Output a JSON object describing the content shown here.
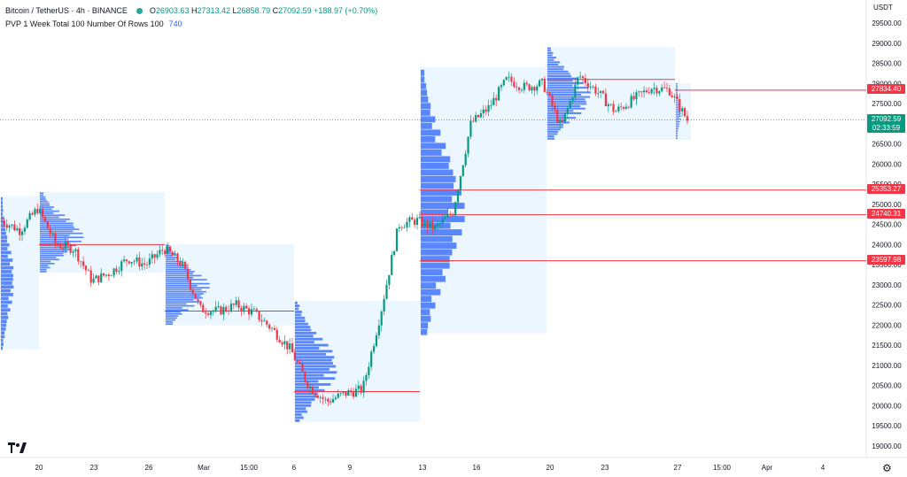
{
  "header": {
    "symbol": "Bitcoin / TetherUS · 4h · BINANCE",
    "ohlc": [
      {
        "k": "O",
        "v": "26903.63"
      },
      {
        "k": "H",
        "v": "27313.42"
      },
      {
        "k": "L",
        "v": "26858.79"
      },
      {
        "k": "C",
        "v": "27092.59"
      },
      {
        "k": "",
        "v": "+188.97 (+0.70%)"
      }
    ]
  },
  "indicator": {
    "label": "PVP 1 Week Total 100 Number Of Rows 100",
    "value": "740"
  },
  "currency": "USDT",
  "price_tags": [
    {
      "label": "27834.40",
      "color": "#f23645"
    },
    {
      "label": "27092.59",
      "color": "#089981"
    },
    {
      "label": "02:33:59",
      "color": "#089981"
    },
    {
      "label": "25353.27",
      "color": "#f23645"
    },
    {
      "label": "24740.31",
      "color": "#f23645"
    },
    {
      "label": "23597.98",
      "color": "#f23645"
    }
  ],
  "colors": {
    "up": "#089981",
    "down": "#f23645",
    "profile": "#2962ff",
    "poc": "#f23645",
    "box": "#e3f2fd"
  },
  "chart_data": {
    "type": "candlestick",
    "y_ticks": [
      19000,
      19500,
      20000,
      20500,
      21000,
      21500,
      22000,
      22500,
      23000,
      23500,
      24000,
      24500,
      25000,
      25500,
      26000,
      26500,
      27000,
      27500,
      28000,
      28500,
      29000,
      29500
    ],
    "ylim": [
      18800,
      29800
    ],
    "x_ticks": [
      "20",
      "23",
      "26",
      "Mar",
      "15:00",
      "6",
      "9",
      "13",
      "16",
      "20",
      "23",
      "27",
      "15:00",
      "Apr",
      "4"
    ],
    "anchors": [
      {
        "y": 24600,
        "t": "mid"
      },
      {
        "y": 24350,
        "t": "mid"
      },
      {
        "y": 24900,
        "t": "mid"
      },
      {
        "y": 24000,
        "t": "mid"
      },
      {
        "y": 23900,
        "t": "mid"
      },
      {
        "y": 23100,
        "t": "mid"
      },
      {
        "y": 23300,
        "t": "mid"
      },
      {
        "y": 23650,
        "t": "mid"
      },
      {
        "y": 23500,
        "t": "mid"
      },
      {
        "y": 23900,
        "t": "mid"
      },
      {
        "y": 23500,
        "t": "mid"
      },
      {
        "y": 22400,
        "t": "mid"
      },
      {
        "y": 22350,
        "t": "mid"
      },
      {
        "y": 22500,
        "t": "mid"
      },
      {
        "y": 22300,
        "t": "mid"
      },
      {
        "y": 21900,
        "t": "mid"
      },
      {
        "y": 21400,
        "t": "mid"
      },
      {
        "y": 20500,
        "t": "mid"
      },
      {
        "y": 20100,
        "t": "mid"
      },
      {
        "y": 20300,
        "t": "mid"
      },
      {
        "y": 20400,
        "t": "mid"
      },
      {
        "y": 22300,
        "t": "mid"
      },
      {
        "y": 24500,
        "t": "mid"
      },
      {
        "y": 24600,
        "t": "mid"
      },
      {
        "y": 24400,
        "t": "mid"
      },
      {
        "y": 24800,
        "t": "mid"
      },
      {
        "y": 27000,
        "t": "mid"
      },
      {
        "y": 27400,
        "t": "mid"
      },
      {
        "y": 28100,
        "t": "mid"
      },
      {
        "y": 27900,
        "t": "mid"
      },
      {
        "y": 28000,
        "t": "mid"
      },
      {
        "y": 26900,
        "t": "mid"
      },
      {
        "y": 28200,
        "t": "mid"
      },
      {
        "y": 27800,
        "t": "mid"
      },
      {
        "y": 27300,
        "t": "mid"
      },
      {
        "y": 27600,
        "t": "mid"
      },
      {
        "y": 27900,
        "t": "mid"
      },
      {
        "y": 27834,
        "t": "mid"
      },
      {
        "y": 27092,
        "t": "mid"
      }
    ],
    "poc_lines": [
      {
        "price": 24000,
        "from": "20",
        "to": "26"
      },
      {
        "price": 22350,
        "from": "26",
        "to": "6"
      },
      {
        "price": 20350,
        "from": "6",
        "to": "13"
      },
      {
        "price": 24740.31,
        "from": "13",
        "to": "end"
      },
      {
        "price": 25353.27,
        "from": "13",
        "to": "end"
      },
      {
        "price": 23597.98,
        "from": "13",
        "to": "end"
      },
      {
        "price": 28100,
        "from": "20",
        "to": "27"
      },
      {
        "price": 27834.4,
        "from": "27",
        "to": "end"
      }
    ],
    "last_price": 27092.59
  }
}
